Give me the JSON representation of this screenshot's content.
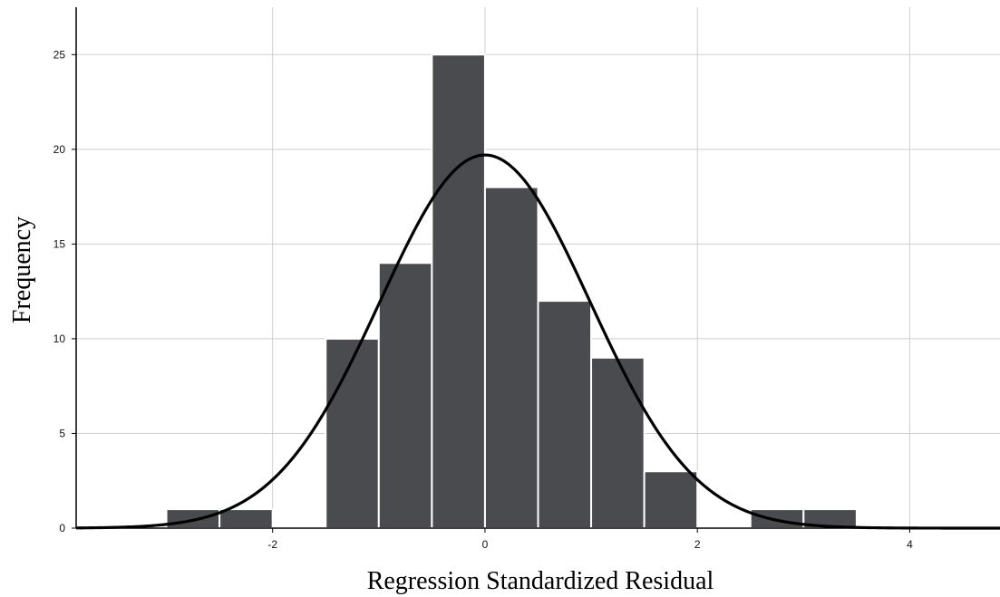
{
  "chart_data": {
    "type": "bar",
    "xlabel": "Regression Standardized Residual",
    "ylabel": "Frequency",
    "xlim": [
      -3.85,
      4.85
    ],
    "ylim": [
      0,
      27.5
    ],
    "x_ticks": [
      "-2",
      "0",
      "2",
      "4"
    ],
    "y_ticks": [
      "0",
      "5",
      "10",
      "15",
      "20",
      "25"
    ],
    "grid": true,
    "bin_width": 0.5,
    "bins": [
      {
        "x0": -3.0,
        "x1": -2.5,
        "count": 1
      },
      {
        "x0": -2.5,
        "x1": -2.0,
        "count": 1
      },
      {
        "x0": -1.5,
        "x1": -1.0,
        "count": 10
      },
      {
        "x0": -1.0,
        "x1": -0.5,
        "count": 14
      },
      {
        "x0": -0.5,
        "x1": 0.0,
        "count": 25
      },
      {
        "x0": 0.0,
        "x1": 0.5,
        "count": 18
      },
      {
        "x0": 0.5,
        "x1": 1.0,
        "count": 12
      },
      {
        "x0": 1.0,
        "x1": 1.5,
        "count": 9
      },
      {
        "x0": 1.5,
        "x1": 2.0,
        "count": 3
      },
      {
        "x0": 2.5,
        "x1": 3.0,
        "count": 1
      },
      {
        "x0": 3.0,
        "x1": 3.5,
        "count": 1
      }
    ],
    "normal_curve": {
      "mean": 0,
      "std_dev": 0.99,
      "peak": 19.7
    },
    "colors": {
      "bar": "#4a4b4e",
      "bar_edge": "#ffffff",
      "curve": "#000000",
      "grid": "#cfcfcf"
    }
  }
}
